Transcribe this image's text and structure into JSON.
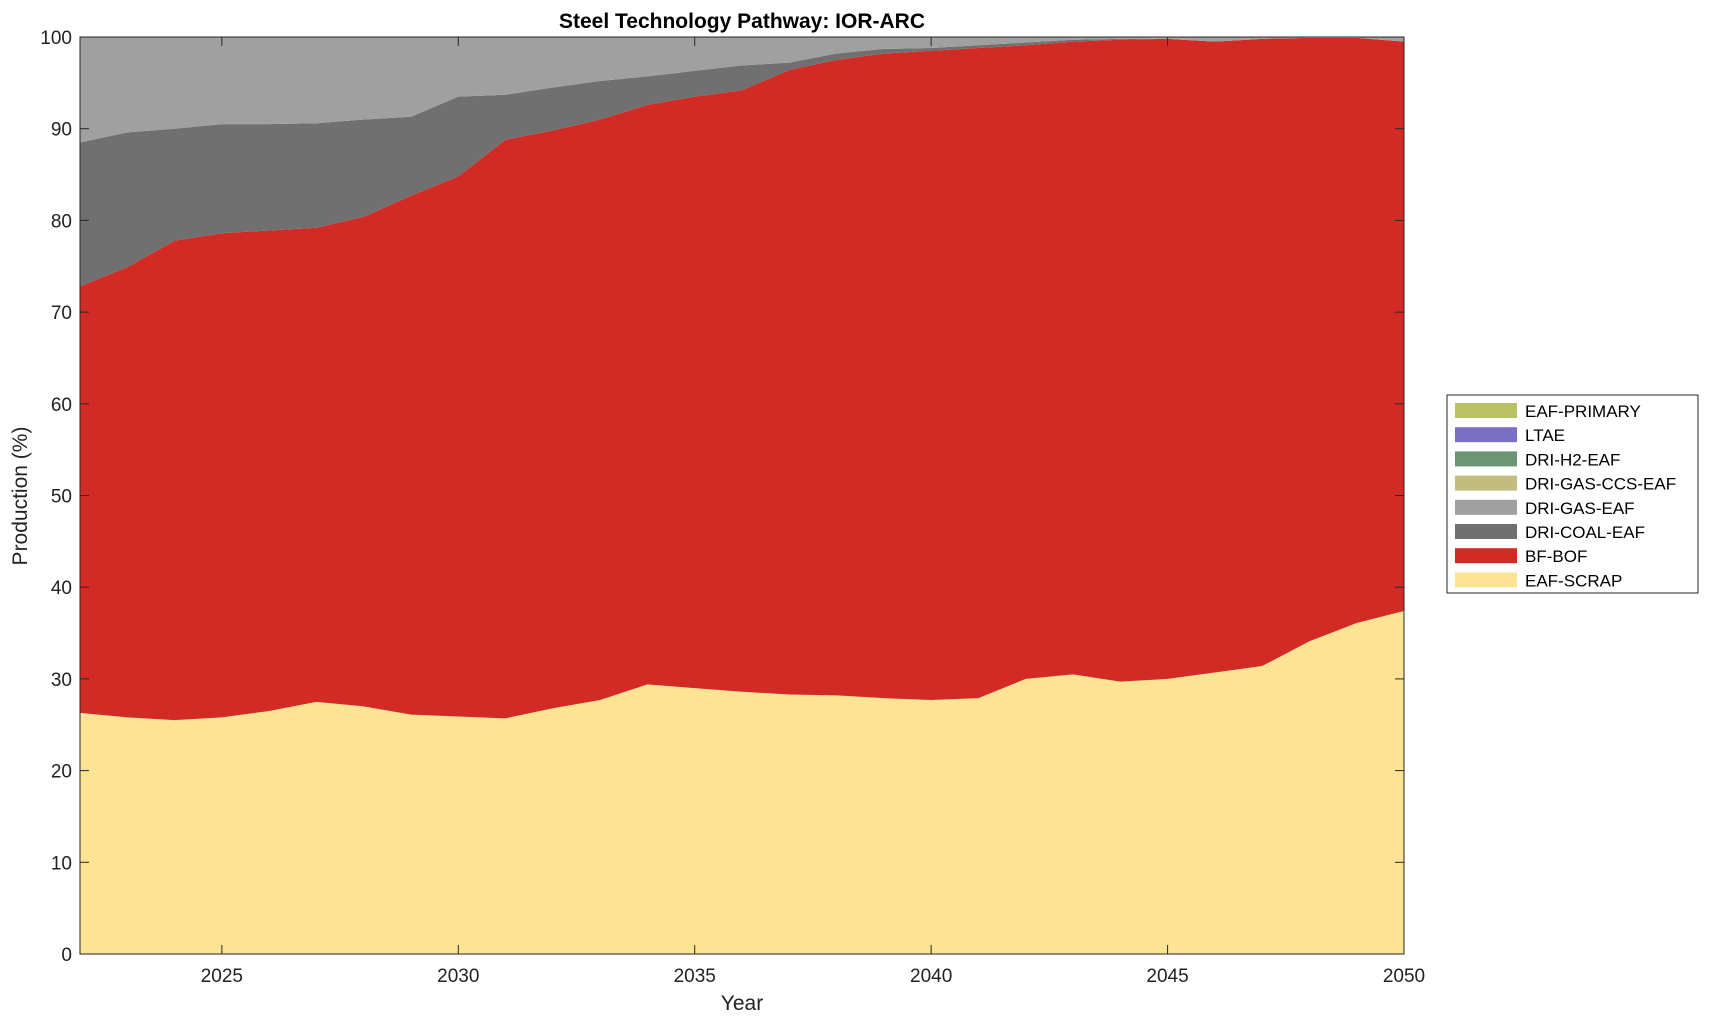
{
  "chart_data": {
    "type": "area",
    "stacked": true,
    "title": "Steel Technology Pathway: IOR-ARC",
    "xlabel": "Year",
    "ylabel": "Production (%)",
    "xlim": [
      2022,
      2050
    ],
    "ylim": [
      0,
      100
    ],
    "xticks": [
      2025,
      2030,
      2035,
      2040,
      2045,
      2050
    ],
    "yticks": [
      0,
      10,
      20,
      30,
      40,
      50,
      60,
      70,
      80,
      90,
      100
    ],
    "grid": false,
    "legend_position": "right",
    "x": [
      2022,
      2023,
      2024,
      2025,
      2026,
      2027,
      2028,
      2029,
      2030,
      2031,
      2032,
      2033,
      2034,
      2035,
      2036,
      2037,
      2038,
      2039,
      2040,
      2041,
      2042,
      2043,
      2044,
      2045,
      2046,
      2047,
      2048,
      2049,
      2050
    ],
    "series": [
      {
        "name": "EAF-SCRAP",
        "color": "#FDE494",
        "values": [
          26.3,
          25.8,
          25.5,
          25.8,
          26.5,
          27.5,
          27.0,
          26.1,
          25.9,
          25.7,
          26.8,
          27.7,
          29.4,
          29.0,
          28.6,
          28.3,
          28.2,
          27.9,
          27.7,
          27.9,
          30.0,
          30.5,
          29.7,
          30.0,
          30.7,
          31.4,
          34.1,
          36.1,
          37.4
        ]
      },
      {
        "name": "BF-BOF",
        "color": "#D22B26",
        "values": [
          46.5,
          49.1,
          52.3,
          52.8,
          52.4,
          51.7,
          53.4,
          56.6,
          58.9,
          63.1,
          63.0,
          63.3,
          63.2,
          64.5,
          65.6,
          68.1,
          69.3,
          70.3,
          70.8,
          70.9,
          69.1,
          69.0,
          70.0,
          69.8,
          68.8,
          68.4,
          65.8,
          63.8,
          62.1
        ]
      },
      {
        "name": "DRI-COAL-EAF",
        "color": "#707070",
        "values": [
          15.7,
          14.7,
          12.2,
          11.9,
          11.6,
          11.4,
          10.6,
          8.6,
          8.7,
          4.9,
          4.7,
          4.2,
          3.1,
          2.8,
          2.7,
          0.8,
          0.7,
          0.5,
          0.3,
          0.3,
          0.3,
          0.2,
          0.1,
          0.0,
          0.0,
          0.0,
          0.0,
          0.0,
          0.0
        ]
      },
      {
        "name": "DRI-GAS-EAF",
        "color": "#A0A0A0",
        "values": [
          11.4,
          10.3,
          9.9,
          9.4,
          9.4,
          9.3,
          8.9,
          8.6,
          6.4,
          6.2,
          5.4,
          4.7,
          4.2,
          3.6,
          3.0,
          2.7,
          1.7,
          1.2,
          1.1,
          0.8,
          0.5,
          0.2,
          0.2,
          0.1,
          0.5,
          0.2,
          0.1,
          0.1,
          0.5
        ]
      },
      {
        "name": "DRI-GAS-CCS-EAF",
        "color": "#C2BC80",
        "values": [
          0,
          0,
          0,
          0,
          0,
          0,
          0,
          0,
          0,
          0,
          0,
          0,
          0,
          0,
          0,
          0,
          0,
          0,
          0,
          0,
          0,
          0,
          0,
          0,
          0,
          0,
          0,
          0,
          0
        ]
      },
      {
        "name": "DRI-H2-EAF",
        "color": "#6B9575",
        "values": [
          0.1,
          0.1,
          0.1,
          0.1,
          0.1,
          0.1,
          0.1,
          0.1,
          0.1,
          0.1,
          0.1,
          0.1,
          0.1,
          0.1,
          0.1,
          0.1,
          0.1,
          0.1,
          0.1,
          0.1,
          0.1,
          0.1,
          0.0,
          0.1,
          0.0,
          0.0,
          0.0,
          0.0,
          0.0
        ]
      },
      {
        "name": "LTAE",
        "color": "#7B6FC3",
        "values": [
          0,
          0,
          0,
          0,
          0,
          0,
          0,
          0,
          0,
          0,
          0,
          0,
          0,
          0,
          0,
          0,
          0,
          0,
          0,
          0,
          0,
          0,
          0,
          0,
          0,
          0,
          0,
          0,
          0
        ]
      },
      {
        "name": "EAF-PRIMARY",
        "color": "#B9C165",
        "values": [
          0,
          0,
          0,
          0,
          0,
          0,
          0,
          0,
          0,
          0,
          0,
          0,
          0,
          0,
          0,
          0,
          0,
          0,
          0,
          0,
          0,
          0,
          0,
          0,
          0,
          0,
          0,
          0,
          0
        ]
      }
    ],
    "legend_order": [
      "EAF-PRIMARY",
      "LTAE",
      "DRI-H2-EAF",
      "DRI-GAS-CCS-EAF",
      "DRI-GAS-EAF",
      "DRI-COAL-EAF",
      "BF-BOF",
      "EAF-SCRAP"
    ]
  }
}
